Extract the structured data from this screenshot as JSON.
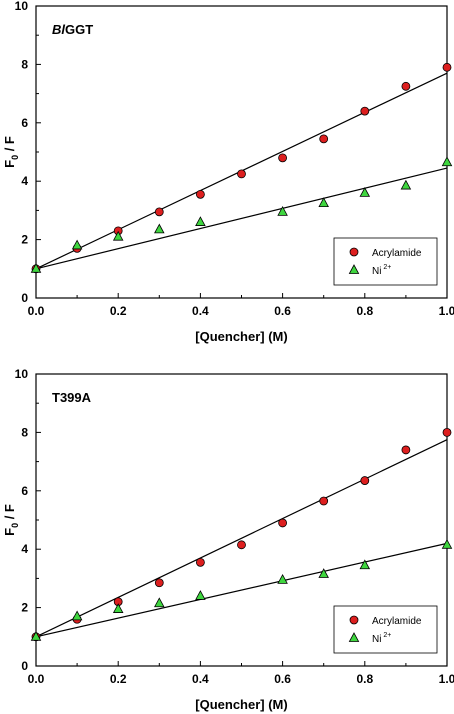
{
  "chart_data": [
    {
      "type": "scatter",
      "title_prefix": "Bl",
      "title_suffix": "GGT",
      "xlabel": "[Quencher] (M)",
      "ylabel_main": "F",
      "ylabel_sub": "0",
      "ylabel_tail": " / F",
      "xlim": [
        0,
        1
      ],
      "ylim": [
        0,
        10
      ],
      "xticks": [
        "0.0",
        "0.2",
        "0.4",
        "0.6",
        "0.8",
        "1.0"
      ],
      "yticks": [
        "0",
        "2",
        "4",
        "6",
        "8",
        "10"
      ],
      "grid": false,
      "legend_position": "lower-right",
      "series": [
        {
          "name": "Acrylamide",
          "marker": "circle",
          "color": "#dd1f1f",
          "x": [
            0,
            0.1,
            0.2,
            0.3,
            0.4,
            0.5,
            0.6,
            0.7,
            0.8,
            0.9,
            1.0
          ],
          "y": [
            1.0,
            1.7,
            2.3,
            2.95,
            3.55,
            4.25,
            4.8,
            5.45,
            6.4,
            7.25,
            7.9
          ],
          "fit": [
            1.0,
            7.7
          ]
        },
        {
          "name": "Ni",
          "name_sup": "2+",
          "marker": "triangle",
          "color": "#3fd63f",
          "x": [
            0,
            0.1,
            0.2,
            0.3,
            0.4,
            0.6,
            0.7,
            0.8,
            0.9,
            1.0
          ],
          "y": [
            1.0,
            1.8,
            2.1,
            2.35,
            2.6,
            2.95,
            3.25,
            3.6,
            3.85,
            4.65
          ],
          "fit": [
            1.0,
            4.45
          ]
        }
      ]
    },
    {
      "type": "scatter",
      "title_prefix": "",
      "title_suffix": "T399A",
      "xlabel": "[Quencher] (M)",
      "ylabel_main": "F",
      "ylabel_sub": "0",
      "ylabel_tail": " / F",
      "xlim": [
        0,
        1
      ],
      "ylim": [
        0,
        10
      ],
      "xticks": [
        "0.0",
        "0.2",
        "0.4",
        "0.6",
        "0.8",
        "1.0"
      ],
      "yticks": [
        "0",
        "2",
        "4",
        "6",
        "8",
        "10"
      ],
      "grid": false,
      "legend_position": "lower-right",
      "series": [
        {
          "name": "Acrylamide",
          "marker": "circle",
          "color": "#dd1f1f",
          "x": [
            0,
            0.1,
            0.2,
            0.3,
            0.4,
            0.5,
            0.6,
            0.7,
            0.8,
            0.9,
            1.0
          ],
          "y": [
            1.0,
            1.6,
            2.2,
            2.85,
            3.55,
            4.15,
            4.9,
            5.65,
            6.35,
            7.4,
            8.0
          ],
          "fit": [
            1.0,
            7.75
          ]
        },
        {
          "name": "Ni",
          "name_sup": "2+",
          "marker": "triangle",
          "color": "#3fd63f",
          "x": [
            0,
            0.1,
            0.2,
            0.3,
            0.4,
            0.6,
            0.7,
            0.8,
            1.0
          ],
          "y": [
            1.0,
            1.7,
            1.95,
            2.15,
            2.4,
            2.95,
            3.15,
            3.45,
            4.15
          ],
          "fit": [
            1.0,
            4.2
          ]
        }
      ]
    }
  ]
}
